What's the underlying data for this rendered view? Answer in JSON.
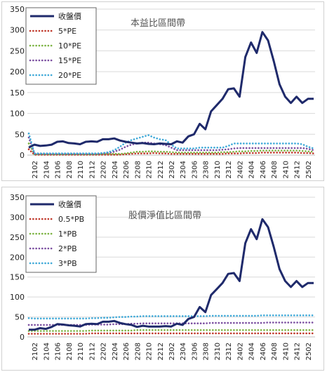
{
  "chart_data": [
    {
      "type": "line",
      "title": "本益比區間帶",
      "xlabel": "",
      "ylabel": "",
      "ylim": [
        0,
        350
      ],
      "yticks": [
        0,
        50,
        100,
        150,
        200,
        250,
        300,
        350
      ],
      "xticks": [
        "2102",
        "2104",
        "2106",
        "2108",
        "2110",
        "2112",
        "2202",
        "2204",
        "2206",
        "2208",
        "2210",
        "2212",
        "2302",
        "2304",
        "2306",
        "2308",
        "2310",
        "2312",
        "2402",
        "2404",
        "2406",
        "2408",
        "2410",
        "2412",
        "2502"
      ],
      "grid": true,
      "legend_position": "top-left",
      "x": [
        "2101",
        "2102",
        "2103",
        "2104",
        "2105",
        "2106",
        "2107",
        "2108",
        "2109",
        "2110",
        "2111",
        "2112",
        "2201",
        "2202",
        "2203",
        "2204",
        "2205",
        "2206",
        "2207",
        "2208",
        "2209",
        "2210",
        "2211",
        "2212",
        "2301",
        "2302",
        "2303",
        "2304",
        "2305",
        "2306",
        "2307",
        "2308",
        "2309",
        "2310",
        "2311",
        "2312",
        "2401",
        "2402",
        "2403",
        "2404",
        "2405",
        "2406",
        "2407",
        "2408",
        "2409",
        "2410",
        "2411",
        "2412",
        "2501",
        "2502",
        "2503"
      ],
      "series": [
        {
          "name": "收盤價",
          "color": "#1f2a6b",
          "style": "solid",
          "values": [
            18,
            25,
            22,
            23,
            25,
            32,
            33,
            29,
            28,
            26,
            32,
            33,
            32,
            38,
            38,
            40,
            35,
            32,
            30,
            28,
            29,
            27,
            26,
            28,
            27,
            26,
            33,
            30,
            45,
            50,
            75,
            62,
            105,
            120,
            135,
            158,
            160,
            140,
            235,
            270,
            245,
            295,
            275,
            225,
            170,
            140,
            125,
            140,
            125,
            135,
            135
          ]
        },
        {
          "name": "5*PE",
          "color": "#c0392b",
          "style": "dotted",
          "values": [
            14,
            1,
            1,
            1,
            1,
            1,
            1,
            1,
            1,
            1,
            1,
            1,
            1,
            1,
            1,
            1,
            1,
            2,
            3,
            4,
            4,
            4,
            5,
            4,
            4,
            3,
            3,
            3,
            3,
            3,
            3,
            3,
            3,
            3,
            3,
            4,
            4,
            4,
            5,
            5,
            5,
            6,
            6,
            6,
            6,
            6,
            6,
            6,
            5,
            5,
            4
          ]
        },
        {
          "name": "10*PE",
          "color": "#7cb342",
          "style": "dotted",
          "values": [
            28,
            2,
            2,
            2,
            2,
            2,
            2,
            2,
            2,
            2,
            2,
            2,
            2,
            3,
            3,
            3,
            3,
            4,
            6,
            8,
            8,
            9,
            9,
            8,
            8,
            7,
            6,
            6,
            6,
            6,
            6,
            6,
            6,
            6,
            7,
            7,
            8,
            9,
            9,
            10,
            10,
            11,
            11,
            11,
            11,
            11,
            11,
            11,
            10,
            9,
            8
          ]
        },
        {
          "name": "15*PE",
          "color": "#7b4fa0",
          "style": "dotted",
          "values": [
            42,
            3,
            3,
            3,
            3,
            3,
            3,
            3,
            3,
            3,
            3,
            3,
            3,
            4,
            5,
            8,
            13,
            20,
            25,
            28,
            30,
            30,
            28,
            26,
            24,
            18,
            12,
            12,
            12,
            12,
            12,
            12,
            12,
            12,
            13,
            14,
            16,
            17,
            17,
            17,
            17,
            17,
            17,
            17,
            17,
            17,
            17,
            17,
            17,
            15,
            12
          ]
        },
        {
          "name": "20*PE",
          "color": "#3fa9d8",
          "style": "dotted",
          "values": [
            52,
            4,
            4,
            4,
            4,
            4,
            4,
            4,
            4,
            4,
            4,
            4,
            4,
            5,
            7,
            12,
            20,
            30,
            36,
            40,
            44,
            48,
            42,
            38,
            36,
            25,
            16,
            16,
            16,
            16,
            18,
            18,
            18,
            18,
            18,
            22,
            28,
            28,
            28,
            28,
            28,
            28,
            28,
            28,
            28,
            28,
            28,
            28,
            26,
            20,
            16
          ]
        }
      ]
    },
    {
      "type": "line",
      "title": "股價淨值比區間帶",
      "xlabel": "",
      "ylabel": "",
      "ylim": [
        0,
        350
      ],
      "yticks": [
        0,
        50,
        100,
        150,
        200,
        250,
        300,
        350
      ],
      "xticks": [
        "2102",
        "2104",
        "2106",
        "2108",
        "2110",
        "2112",
        "2202",
        "2204",
        "2206",
        "2208",
        "2210",
        "2212",
        "2302",
        "2304",
        "2306",
        "2308",
        "2310",
        "2312",
        "2402",
        "2404",
        "2406",
        "2408",
        "2410",
        "2412",
        "2502"
      ],
      "grid": true,
      "legend_position": "top-left",
      "x": [
        "2101",
        "2102",
        "2103",
        "2104",
        "2105",
        "2106",
        "2107",
        "2108",
        "2109",
        "2110",
        "2111",
        "2112",
        "2201",
        "2202",
        "2203",
        "2204",
        "2205",
        "2206",
        "2207",
        "2208",
        "2209",
        "2210",
        "2211",
        "2212",
        "2301",
        "2302",
        "2303",
        "2304",
        "2305",
        "2306",
        "2307",
        "2308",
        "2309",
        "2310",
        "2311",
        "2312",
        "2401",
        "2402",
        "2403",
        "2404",
        "2405",
        "2406",
        "2407",
        "2408",
        "2409",
        "2410",
        "2411",
        "2412",
        "2501",
        "2502",
        "2503"
      ],
      "series": [
        {
          "name": "收盤價",
          "color": "#1f2a6b",
          "style": "solid",
          "values": [
            18,
            18,
            22,
            20,
            25,
            32,
            31,
            29,
            28,
            26,
            32,
            33,
            32,
            38,
            38,
            40,
            35,
            32,
            30,
            25,
            28,
            26,
            26,
            26,
            27,
            26,
            33,
            30,
            45,
            50,
            75,
            62,
            105,
            120,
            135,
            158,
            160,
            140,
            235,
            270,
            245,
            295,
            275,
            225,
            170,
            140,
            125,
            140,
            125,
            135,
            135
          ]
        },
        {
          "name": "0.5*PB",
          "color": "#c0392b",
          "style": "dotted",
          "values": [
            8,
            8,
            8,
            8,
            8,
            8,
            8,
            8,
            8,
            8,
            8,
            9,
            9,
            9,
            9,
            9,
            9,
            9,
            9,
            9,
            9,
            9,
            9,
            9,
            9,
            9,
            9,
            9,
            9,
            9,
            9,
            9,
            9,
            9,
            9,
            9,
            9,
            9,
            9,
            9,
            9,
            9,
            9,
            9,
            9,
            9,
            9,
            9,
            9,
            9,
            9
          ]
        },
        {
          "name": "1*PB",
          "color": "#7cb342",
          "style": "dotted",
          "values": [
            15,
            15,
            15,
            15,
            15,
            15,
            15,
            15,
            15,
            15,
            15,
            16,
            16,
            16,
            16,
            16,
            16,
            16,
            16,
            17,
            17,
            17,
            17,
            17,
            17,
            17,
            17,
            17,
            17,
            17,
            17,
            17,
            17,
            17,
            17,
            17,
            17,
            17,
            17,
            17,
            17,
            17,
            17,
            17,
            17,
            17,
            17,
            17,
            17,
            17,
            17
          ]
        },
        {
          "name": "2*PB",
          "color": "#7b4fa0",
          "style": "dotted",
          "values": [
            30,
            30,
            30,
            30,
            30,
            30,
            30,
            30,
            30,
            30,
            30,
            31,
            31,
            31,
            31,
            32,
            32,
            32,
            33,
            33,
            34,
            34,
            34,
            34,
            34,
            34,
            34,
            34,
            34,
            34,
            34,
            34,
            35,
            35,
            35,
            35,
            35,
            35,
            35,
            35,
            35,
            35,
            36,
            36,
            36,
            36,
            36,
            36,
            36,
            36,
            36
          ]
        },
        {
          "name": "3*PB",
          "color": "#3fa9d8",
          "style": "dotted",
          "values": [
            47,
            46,
            46,
            46,
            46,
            46,
            46,
            46,
            46,
            46,
            46,
            47,
            47,
            48,
            48,
            49,
            50,
            50,
            51,
            51,
            52,
            52,
            52,
            52,
            52,
            52,
            52,
            52,
            52,
            52,
            52,
            52,
            53,
            53,
            53,
            53,
            53,
            53,
            53,
            53,
            53,
            54,
            54,
            54,
            54,
            54,
            54,
            54,
            54,
            54,
            54
          ]
        }
      ]
    }
  ]
}
